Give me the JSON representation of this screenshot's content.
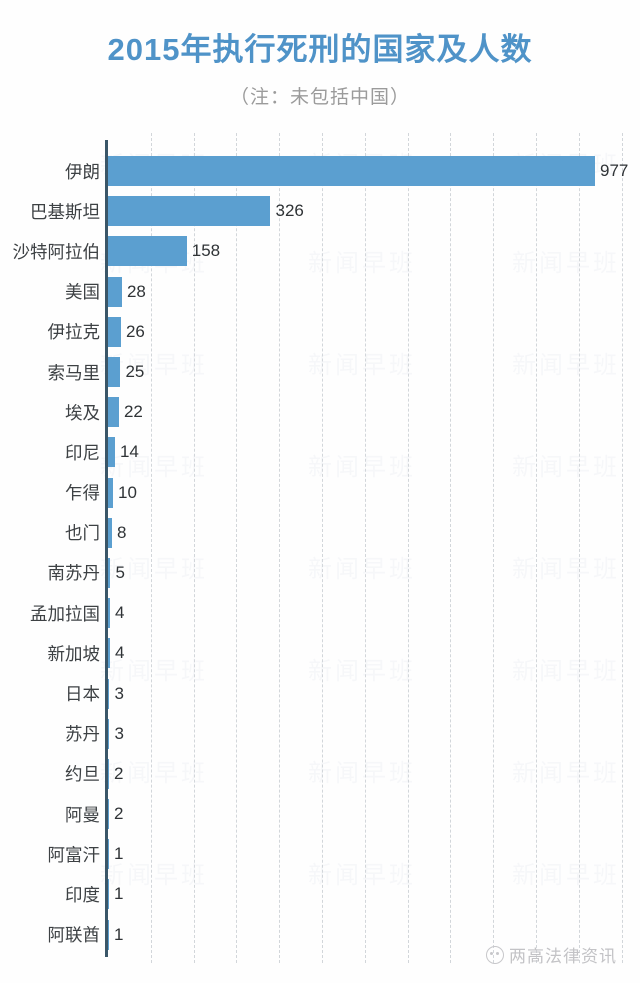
{
  "header": {
    "title": "2015年执行死刑的国家及人数",
    "subtitle": "（注：未包括中国）"
  },
  "chart_data": {
    "type": "bar",
    "orientation": "horizontal",
    "title": "2015年执行死刑的国家及人数",
    "subtitle_note": "（注：未包括中国）",
    "categories": [
      "伊朗",
      "巴基斯坦",
      "沙特阿拉伯",
      "美国",
      "伊拉克",
      "索马里",
      "埃及",
      "印尼",
      "乍得",
      "也门",
      "南苏丹",
      "孟加拉国",
      "新加坡",
      "日本",
      "苏丹",
      "约旦",
      "阿曼",
      "阿富汗",
      "印度",
      "阿联酋"
    ],
    "values": [
      977,
      326,
      158,
      28,
      26,
      25,
      22,
      14,
      10,
      8,
      5,
      4,
      4,
      3,
      3,
      2,
      2,
      1,
      1,
      1
    ],
    "xlabel": "",
    "ylabel": "",
    "xlim": [
      0,
      1030
    ],
    "grid": true,
    "gridline_count": 12,
    "value_labels_shown": true,
    "legend": "none"
  },
  "watermark": {
    "tile_text": "新闻早班",
    "note": "faint repeated background watermark"
  },
  "footer": {
    "logo_text": "两高法律资讯"
  },
  "colors": {
    "bar": "#5b9fd0",
    "title": "#4f93c8",
    "subtitle": "#9b9b9b",
    "axis": "#3a5668",
    "gridline": "#d2d6da",
    "value_label": "#2f3336",
    "category_label": "#3d4144",
    "footer_logo": "#c3c3c6"
  }
}
